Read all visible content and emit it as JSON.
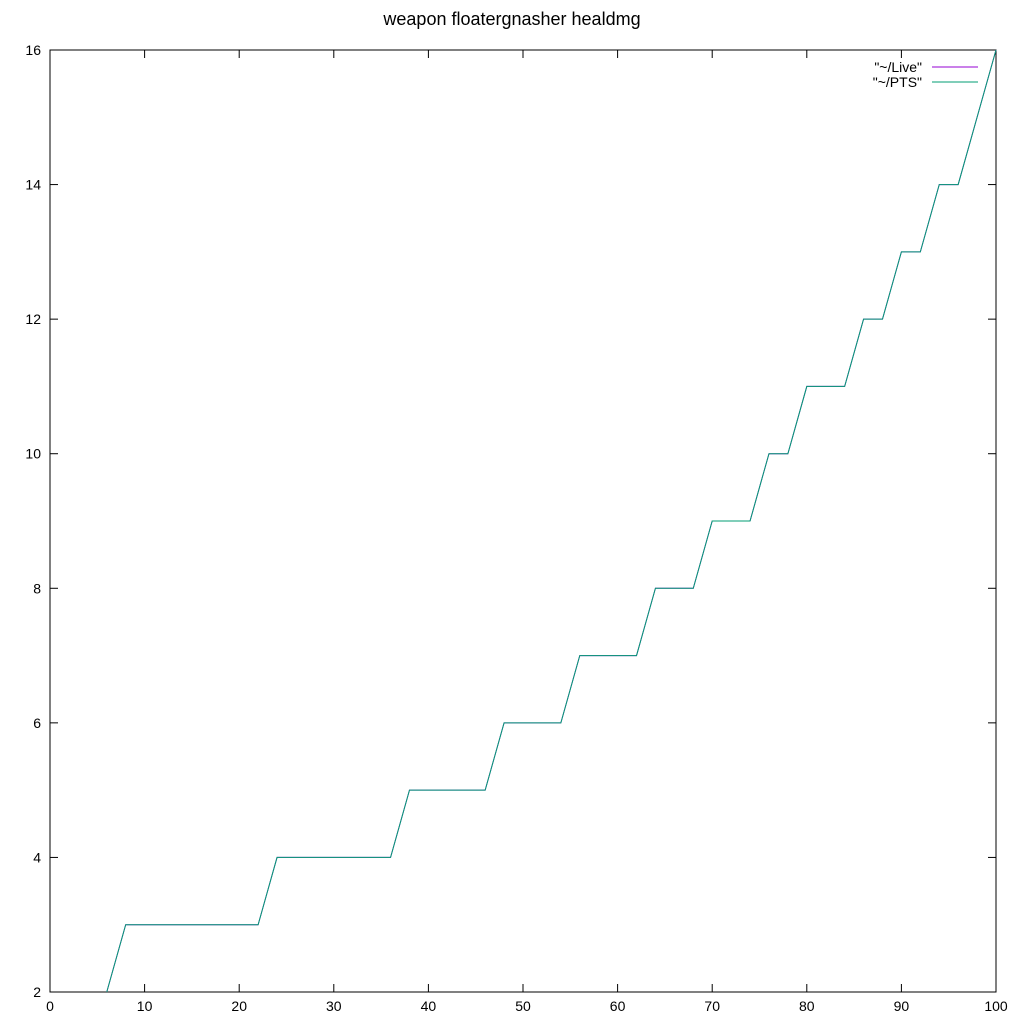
{
  "chart_data": {
    "type": "line",
    "title": "weapon floatergnasher healdmg",
    "xlabel": "",
    "ylabel": "",
    "xlim": [
      0,
      100
    ],
    "ylim": [
      2,
      16
    ],
    "xticks": [
      0,
      10,
      20,
      30,
      40,
      50,
      60,
      70,
      80,
      90,
      100
    ],
    "yticks": [
      2,
      4,
      6,
      8,
      10,
      12,
      14,
      16
    ],
    "grid": false,
    "legend": "top-right",
    "series": [
      {
        "name": "\"~/Live\"",
        "color": "#9400d3",
        "x": [
          6,
          8,
          22,
          24,
          36,
          38,
          46,
          48,
          54,
          56,
          62,
          64,
          68,
          70,
          74,
          76,
          78,
          80,
          84,
          86,
          88,
          90,
          92,
          94,
          96,
          98,
          100
        ],
        "y": [
          2,
          3,
          3,
          4,
          4,
          5,
          5,
          6,
          6,
          7,
          7,
          8,
          8,
          9,
          9,
          10,
          10,
          11,
          11,
          12,
          12,
          13,
          13,
          14,
          14,
          15,
          16
        ]
      },
      {
        "name": "\"~/PTS\"",
        "color": "#009e73",
        "x": [
          6,
          8,
          22,
          24,
          36,
          38,
          46,
          48,
          54,
          56,
          62,
          64,
          68,
          70,
          74,
          76,
          78,
          80,
          84,
          86,
          88,
          90,
          92,
          94,
          96,
          98,
          100
        ],
        "y": [
          2,
          3,
          3,
          4,
          4,
          5,
          5,
          6,
          6,
          7,
          7,
          8,
          8,
          9,
          9,
          10,
          10,
          11,
          11,
          12,
          12,
          13,
          13,
          14,
          14,
          15,
          16
        ]
      }
    ]
  }
}
